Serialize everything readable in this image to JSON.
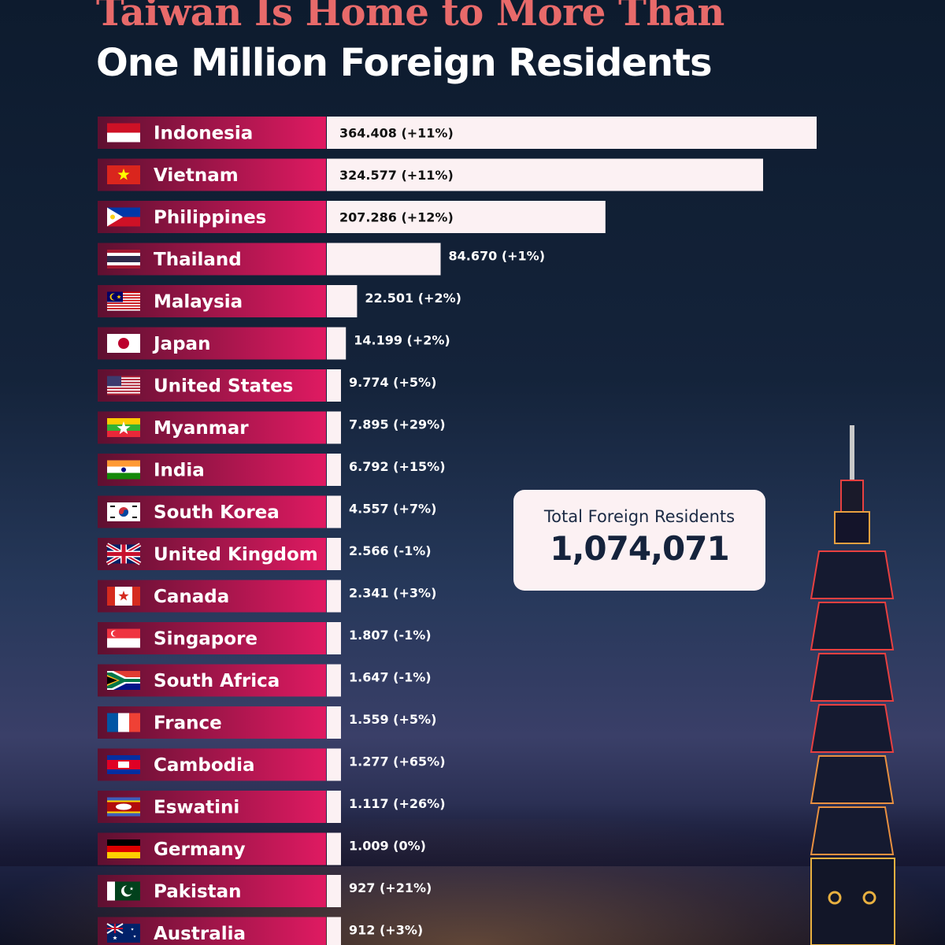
{
  "title_line1": "Taiwan Is Home to More Than",
  "title_line2": "One Million Foreign Residents",
  "total": {
    "label": "Total Foreign Residents",
    "value": "1,074,071"
  },
  "colors": {
    "title_accent": "#e86a6a",
    "label_bar_dark": "#5e1030",
    "label_bar_bright": "#e01a62",
    "value_bar": "#fcf1f3"
  },
  "chart_data": {
    "type": "bar",
    "orientation": "horizontal",
    "grid": false,
    "categories": [
      "Indonesia",
      "Vietnam",
      "Philippines",
      "Thailand",
      "Malaysia",
      "Japan",
      "United States",
      "Myanmar",
      "India",
      "South Korea",
      "United Kingdom",
      "Canada",
      "Singapore",
      "South Africa",
      "France",
      "Cambodia",
      "Eswatini",
      "Germany",
      "Pakistan",
      "Australia"
    ],
    "values": [
      364408,
      324577,
      207286,
      84670,
      22501,
      14199,
      9774,
      7895,
      6792,
      4557,
      2566,
      2341,
      1807,
      1647,
      1559,
      1277,
      1117,
      1009,
      927,
      912
    ],
    "data_labels": [
      "364.408 (+11%)",
      "324.577 (+11%)",
      "207.286 (+12%)",
      "84.670 (+1%)",
      "22.501 (+2%)",
      "14.199 (+2%)",
      "9.774 (+5%)",
      "7.895 (+29%)",
      "6.792 (+15%)",
      "4.557 (+7%)",
      "2.566 (-1%)",
      "2.341 (+3%)",
      "1.807 (-1%)",
      "1.647 (-1%)",
      "1.559 (+5%)",
      "1.277 (+65%)",
      "1.117 (+26%)",
      "1.009 (0%)",
      "927 (+21%)",
      "912 (+3%)"
    ],
    "flag_icons": [
      "indonesia-flag-icon",
      "vietnam-flag-icon",
      "philippines-flag-icon",
      "thailand-flag-icon",
      "malaysia-flag-icon",
      "japan-flag-icon",
      "united-states-flag-icon",
      "myanmar-flag-icon",
      "india-flag-icon",
      "south-korea-flag-icon",
      "united-kingdom-flag-icon",
      "canada-flag-icon",
      "singapore-flag-icon",
      "south-africa-flag-icon",
      "france-flag-icon",
      "cambodia-flag-icon",
      "eswatini-flag-icon",
      "germany-flag-icon",
      "pakistan-flag-icon",
      "australia-flag-icon"
    ]
  }
}
